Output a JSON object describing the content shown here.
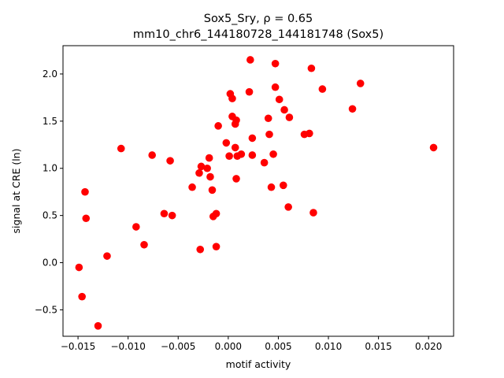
{
  "chart_data": {
    "type": "scatter",
    "title_line1": "Sox5_Sry, ρ = 0.65",
    "title_line2": "mm10_chr6_144180728_144181748 (Sox5)",
    "xlabel": "motif activity",
    "ylabel": "signal at CRE (ln)",
    "xlim": [
      -0.0165,
      0.0225
    ],
    "ylim": [
      -0.78,
      2.3
    ],
    "grid": false,
    "legend": "none",
    "marker_color": "#ff0000",
    "x_ticks": [
      {
        "value": -0.015,
        "label": "−0.015"
      },
      {
        "value": -0.01,
        "label": "−0.010"
      },
      {
        "value": -0.005,
        "label": "−0.005"
      },
      {
        "value": 0.0,
        "label": "0.000"
      },
      {
        "value": 0.005,
        "label": "0.005"
      },
      {
        "value": 0.01,
        "label": "0.010"
      },
      {
        "value": 0.015,
        "label": "0.015"
      },
      {
        "value": 0.02,
        "label": "0.020"
      }
    ],
    "y_ticks": [
      {
        "value": -0.5,
        "label": "−0.5"
      },
      {
        "value": 0.0,
        "label": "0.0"
      },
      {
        "value": 0.5,
        "label": "0.5"
      },
      {
        "value": 1.0,
        "label": "1.0"
      },
      {
        "value": 1.5,
        "label": "1.5"
      },
      {
        "value": 2.0,
        "label": "2.0"
      }
    ],
    "points": [
      {
        "x": -0.0149,
        "y": -0.05
      },
      {
        "x": -0.0146,
        "y": -0.36
      },
      {
        "x": -0.0143,
        "y": 0.75
      },
      {
        "x": -0.0142,
        "y": 0.47
      },
      {
        "x": -0.013,
        "y": -0.67
      },
      {
        "x": -0.0121,
        "y": 0.07
      },
      {
        "x": -0.0107,
        "y": 1.21
      },
      {
        "x": -0.0092,
        "y": 0.38
      },
      {
        "x": -0.0084,
        "y": 0.19
      },
      {
        "x": -0.0076,
        "y": 1.14
      },
      {
        "x": -0.0064,
        "y": 0.52
      },
      {
        "x": -0.0058,
        "y": 1.08
      },
      {
        "x": -0.0056,
        "y": 0.5
      },
      {
        "x": -0.0036,
        "y": 0.8
      },
      {
        "x": -0.0029,
        "y": 0.95
      },
      {
        "x": -0.0028,
        "y": 0.14
      },
      {
        "x": -0.0027,
        "y": 1.02
      },
      {
        "x": -0.0021,
        "y": 1.0
      },
      {
        "x": -0.0019,
        "y": 1.11
      },
      {
        "x": -0.0018,
        "y": 0.91
      },
      {
        "x": -0.0016,
        "y": 0.77
      },
      {
        "x": -0.0015,
        "y": 0.49
      },
      {
        "x": -0.0012,
        "y": 0.52
      },
      {
        "x": -0.0012,
        "y": 0.17
      },
      {
        "x": -0.001,
        "y": 1.45
      },
      {
        "x": -0.0002,
        "y": 1.27
      },
      {
        "x": 0.0001,
        "y": 1.13
      },
      {
        "x": 0.0002,
        "y": 1.79
      },
      {
        "x": 0.0004,
        "y": 1.55
      },
      {
        "x": 0.0004,
        "y": 1.74
      },
      {
        "x": 0.0007,
        "y": 1.22
      },
      {
        "x": 0.0007,
        "y": 1.47
      },
      {
        "x": 0.0008,
        "y": 1.51
      },
      {
        "x": 0.0008,
        "y": 0.89
      },
      {
        "x": 0.0009,
        "y": 1.13
      },
      {
        "x": 0.0013,
        "y": 1.15
      },
      {
        "x": 0.0021,
        "y": 1.81
      },
      {
        "x": 0.0022,
        "y": 2.15
      },
      {
        "x": 0.0024,
        "y": 1.32
      },
      {
        "x": 0.0024,
        "y": 1.14
      },
      {
        "x": 0.0036,
        "y": 1.06
      },
      {
        "x": 0.004,
        "y": 1.53
      },
      {
        "x": 0.0041,
        "y": 1.36
      },
      {
        "x": 0.0043,
        "y": 0.8
      },
      {
        "x": 0.0045,
        "y": 1.15
      },
      {
        "x": 0.0047,
        "y": 2.11
      },
      {
        "x": 0.0047,
        "y": 1.86
      },
      {
        "x": 0.0051,
        "y": 1.73
      },
      {
        "x": 0.0055,
        "y": 0.82
      },
      {
        "x": 0.0056,
        "y": 1.62
      },
      {
        "x": 0.006,
        "y": 0.59
      },
      {
        "x": 0.0061,
        "y": 1.54
      },
      {
        "x": 0.0076,
        "y": 1.36
      },
      {
        "x": 0.0081,
        "y": 1.37
      },
      {
        "x": 0.0083,
        "y": 2.06
      },
      {
        "x": 0.0085,
        "y": 0.53
      },
      {
        "x": 0.0094,
        "y": 1.84
      },
      {
        "x": 0.0124,
        "y": 1.63
      },
      {
        "x": 0.0132,
        "y": 1.9
      },
      {
        "x": 0.0205,
        "y": 1.22
      }
    ]
  }
}
